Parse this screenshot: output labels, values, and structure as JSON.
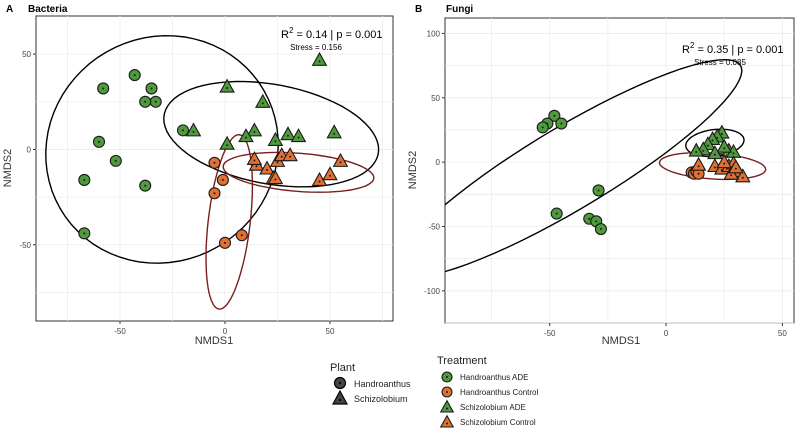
{
  "chart_data": [
    {
      "type": "scatter",
      "panel_letter": "A",
      "title": "Bacteria",
      "stat_r2": "0.14",
      "stat_p": "0.001",
      "stress_label": "Stress = 0.156",
      "xlabel": "NMDS1",
      "ylabel": "NMDS2",
      "xlim": [
        -90,
        80
      ],
      "ylim": [
        -90,
        70
      ],
      "xticks": [
        -50,
        0,
        50
      ],
      "yticks": [
        -50,
        0,
        50
      ],
      "grid": true,
      "series": [
        {
          "name": "Handroanthus ADE",
          "shape": "circle",
          "color": "#4f9a3c",
          "x": [
            -43,
            -35,
            -58,
            -33,
            -38,
            -60,
            -52,
            -67,
            -38,
            -67,
            -20
          ],
          "y": [
            39,
            32,
            32,
            25,
            25,
            4,
            -6,
            -16,
            -19,
            -44,
            10
          ]
        },
        {
          "name": "Handroanthus Control",
          "shape": "circle",
          "color": "#e07034",
          "x": [
            -5,
            -1,
            -5,
            0,
            8
          ],
          "y": [
            -7,
            -16,
            -23,
            -49,
            -45
          ]
        },
        {
          "name": "Schizolobium ADE",
          "shape": "triangle",
          "color": "#4f9a3c",
          "x": [
            45,
            18,
            1,
            -15,
            14,
            10,
            30,
            35,
            52,
            24,
            1
          ],
          "y": [
            47,
            25,
            33,
            10,
            10,
            7,
            8,
            7,
            9,
            5,
            3
          ]
        },
        {
          "name": "Schizolobium Control",
          "shape": "triangle",
          "color": "#e07034",
          "x": [
            15,
            20,
            25,
            27,
            23,
            31,
            45,
            50,
            55,
            14,
            24
          ],
          "y": [
            -8,
            -10,
            -6,
            -3,
            -15,
            -3,
            -16,
            -13,
            -6,
            -5,
            -15
          ]
        }
      ],
      "ellipses": [
        {
          "group": "ADE (Handroanthus)",
          "color": "#000000",
          "cx": -30,
          "cy": 0,
          "rx": 60,
          "ry": 55,
          "angle": 75
        },
        {
          "group": "ADE (Schizolobium)",
          "color": "#000000",
          "cx": 22,
          "cy": 8,
          "rx": 52,
          "ry": 26,
          "angle": -12
        },
        {
          "group": "Control (Handroanthus)",
          "color": "#7a1e1e",
          "cx": 2,
          "cy": -38,
          "rx": 46,
          "ry": 10,
          "angle": 84
        },
        {
          "group": "Control (Schizolobium)",
          "color": "#7a1e1e",
          "cx": 35,
          "cy": -12,
          "rx": 36,
          "ry": 10,
          "angle": -5
        }
      ]
    },
    {
      "type": "scatter",
      "panel_letter": "B",
      "title": "Fungi",
      "stat_r2": "0.35",
      "stat_p": "0.001",
      "stress_label": "Stress = 0.085",
      "xlabel": "NMDS1",
      "ylabel": "NMDS2",
      "xlim": [
        -95,
        55
      ],
      "ylim": [
        -125,
        112
      ],
      "xticks": [
        -50,
        0,
        50
      ],
      "yticks": [
        -100,
        -50,
        0,
        50,
        100
      ],
      "grid": true,
      "series": [
        {
          "name": "Handroanthus ADE",
          "shape": "circle",
          "color": "#4f9a3c",
          "x": [
            -48,
            -45,
            -51,
            -53,
            -29,
            -47,
            -33,
            -30,
            -28
          ],
          "y": [
            36,
            30,
            30,
            27,
            -22,
            -40,
            -44,
            -46,
            -52
          ]
        },
        {
          "name": "Handroanthus Control",
          "shape": "circle",
          "color": "#e07034",
          "x": [
            11,
            12,
            13,
            14
          ],
          "y": [
            -8,
            -9,
            -7,
            -9
          ]
        },
        {
          "name": "Schizolobium ADE",
          "shape": "triangle",
          "color": "#4f9a3c",
          "x": [
            24,
            22,
            20,
            18,
            16,
            13,
            27,
            29,
            25,
            21
          ],
          "y": [
            23,
            20,
            18,
            14,
            10,
            9,
            9,
            8,
            12,
            7
          ]
        },
        {
          "name": "Schizolobium Control",
          "shape": "triangle",
          "color": "#e07034",
          "x": [
            14,
            21,
            24,
            27,
            29,
            31,
            33,
            28,
            30,
            25
          ],
          "y": [
            -2,
            -3,
            -5,
            -3,
            -1,
            -7,
            -11,
            -9,
            -4,
            0
          ]
        }
      ],
      "ellipses": [
        {
          "group": "Handroanthus ADE",
          "color": "#000000",
          "cx": -42,
          "cy": -5,
          "rx": 110,
          "ry": 25,
          "angle": 49
        },
        {
          "group": "Schizolobium ADE",
          "color": "#000000",
          "cx": 21,
          "cy": 15,
          "rx": 13,
          "ry": 10,
          "angle": 25
        },
        {
          "group": "Control",
          "color": "#7a1e1e",
          "cx": 20,
          "cy": -3,
          "rx": 23,
          "ry": 10,
          "angle": -8
        }
      ]
    }
  ],
  "legend": {
    "plant_title": "Plant",
    "plant_items": [
      {
        "label": "Handroanthus",
        "shape": "circle"
      },
      {
        "label": "Schizolobium",
        "shape": "triangle"
      }
    ],
    "treatment_title": "Treatment",
    "treatment_items": [
      {
        "label": "Handroanthus ADE",
        "shape": "circle",
        "color": "#4f9a3c"
      },
      {
        "label": "Handroanthus Control",
        "shape": "circle",
        "color": "#e07034"
      },
      {
        "label": "Schizolobium ADE",
        "shape": "triangle",
        "color": "#4f9a3c"
      },
      {
        "label": "Schizolobium Control",
        "shape": "triangle",
        "color": "#e07034"
      }
    ]
  }
}
